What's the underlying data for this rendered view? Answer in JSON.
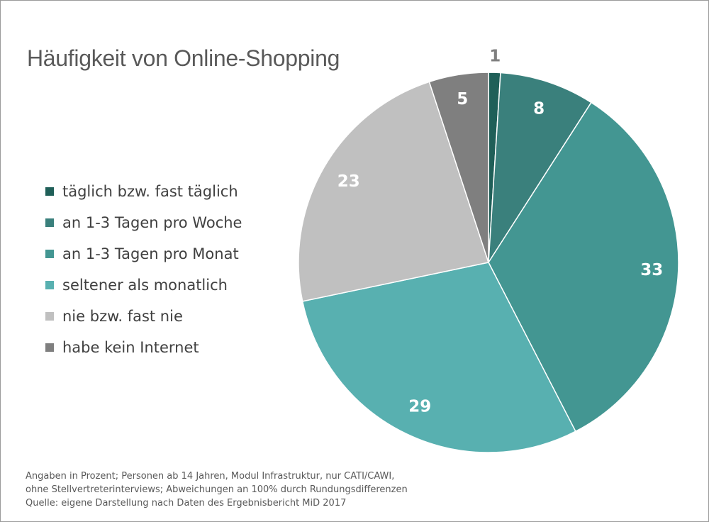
{
  "chart_data": {
    "type": "pie",
    "title": "Häufigkeit von Online-Shopping",
    "categories": [
      "täglich bzw. fast täglich",
      "an 1-3 Tagen pro Woche",
      "an 1-3 Tagen pro Monat",
      "seltener als monatlich",
      "nie bzw. fast nie",
      "habe kein Internet"
    ],
    "values": [
      1,
      8,
      33,
      29,
      23,
      5
    ],
    "data_labels": [
      "1",
      "8",
      "33",
      "29",
      "23",
      "5"
    ],
    "colors": [
      "#1f5f58",
      "#3a807c",
      "#439692",
      "#58b0b0",
      "#c0c0c0",
      "#7f7f7f"
    ],
    "label_colors": [
      "#7f7f7f",
      "#ffffff",
      "#ffffff",
      "#ffffff",
      "#ffffff",
      "#ffffff"
    ],
    "legend_position": "left",
    "start_angle": "top",
    "direction": "clockwise"
  },
  "notes": [
    "Angaben in Prozent; Personen ab 14 Jahren, Modul Infrastruktur, nur CATI/CAWI,",
    "ohne Stellvertreterinterviews; Abweichungen an 100% durch Rundungsdifferenzen",
    "Quelle: eigene Darstellung nach Daten des Ergebnisbericht MiD 2017"
  ]
}
